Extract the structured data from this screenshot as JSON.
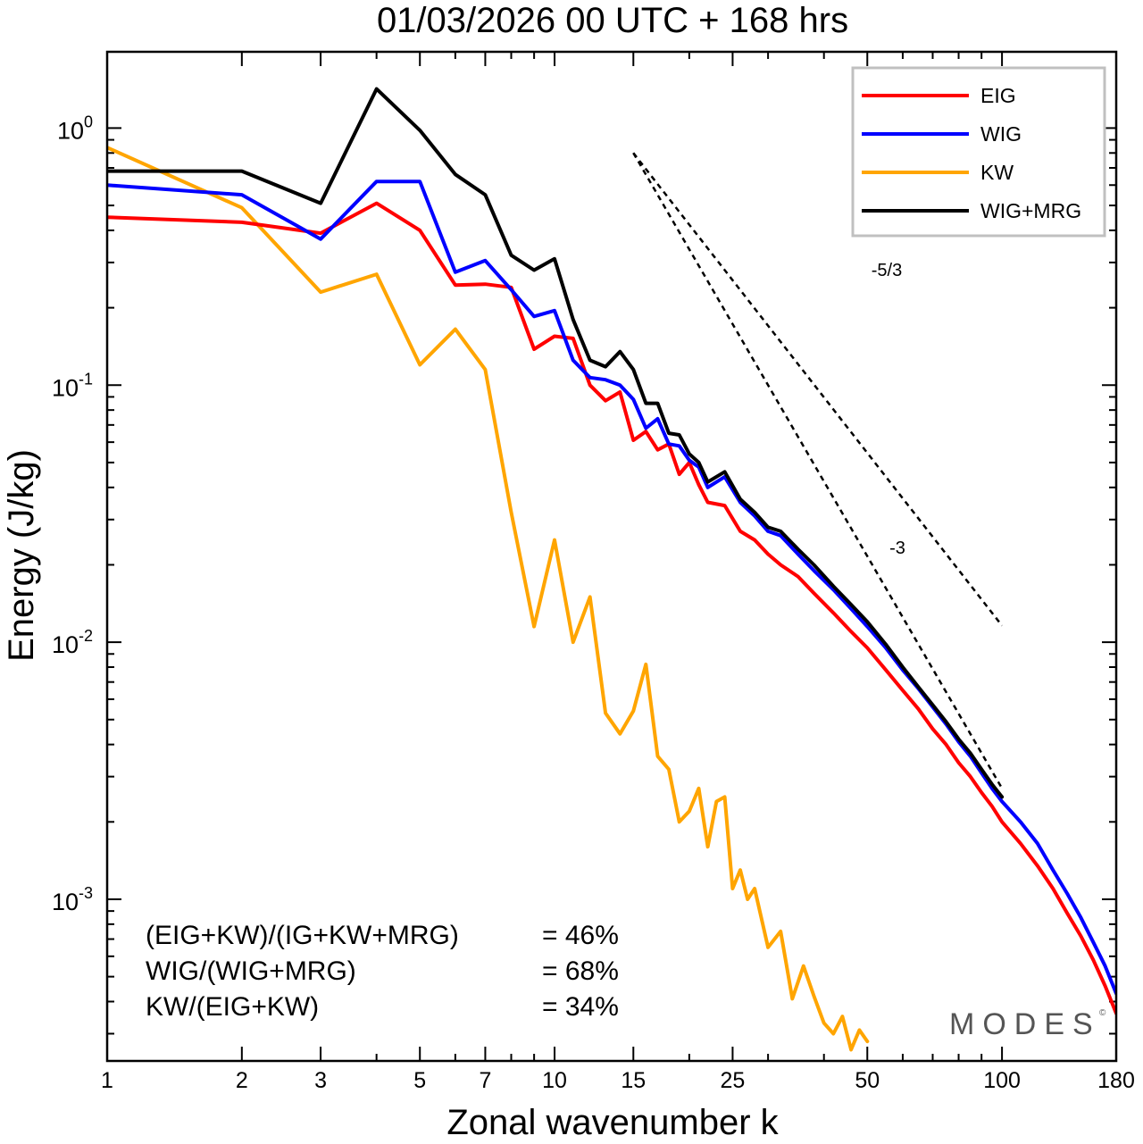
{
  "chart_data": {
    "type": "line",
    "title": "01/03/2026  00 UTC  + 168 hrs",
    "xlabel": "Zonal wavenumber k",
    "ylabel": "Energy (J/kg)",
    "xscale": "log",
    "yscale": "log",
    "xlim": [
      1,
      180
    ],
    "ylim": [
      0.000235,
      1.98
    ],
    "x_ticks": [
      1,
      2,
      3,
      5,
      7,
      10,
      15,
      25,
      50,
      100,
      180
    ],
    "x_tick_labels": [
      "1",
      "2",
      "3",
      "5",
      "7",
      "10",
      "15",
      "25",
      "50",
      "100",
      "180"
    ],
    "y_major_ticks": [
      {
        "value": 1,
        "base": "10",
        "exp": "0"
      },
      {
        "value": 0.1,
        "base": "10",
        "exp": "-1"
      },
      {
        "value": 0.01,
        "base": "10",
        "exp": "-2"
      },
      {
        "value": 0.001,
        "base": "10",
        "exp": "-3"
      }
    ],
    "legend_position": "top-right",
    "series": [
      {
        "name": "EIG",
        "color": "#ff0000",
        "points": [
          [
            1,
            0.45
          ],
          [
            2,
            0.43
          ],
          [
            3,
            0.39
          ],
          [
            4,
            0.51
          ],
          [
            5,
            0.4
          ],
          [
            6,
            0.245
          ],
          [
            7,
            0.247
          ],
          [
            8,
            0.24
          ],
          [
            9,
            0.138
          ],
          [
            10,
            0.155
          ],
          [
            11,
            0.152
          ],
          [
            12,
            0.1
          ],
          [
            13,
            0.087
          ],
          [
            14,
            0.094
          ],
          [
            15,
            0.061
          ],
          [
            16,
            0.066
          ],
          [
            17,
            0.056
          ],
          [
            18,
            0.059
          ],
          [
            19,
            0.045
          ],
          [
            20,
            0.05
          ],
          [
            21,
            0.041
          ],
          [
            22,
            0.035
          ],
          [
            24,
            0.034
          ],
          [
            26,
            0.027
          ],
          [
            28,
            0.025
          ],
          [
            30,
            0.022
          ],
          [
            32,
            0.02
          ],
          [
            35,
            0.018
          ],
          [
            38,
            0.0155
          ],
          [
            42,
            0.013
          ],
          [
            46,
            0.011
          ],
          [
            50,
            0.0095
          ],
          [
            55,
            0.0078
          ],
          [
            60,
            0.0065
          ],
          [
            65,
            0.0055
          ],
          [
            70,
            0.0046
          ],
          [
            75,
            0.004
          ],
          [
            80,
            0.0034
          ],
          [
            85,
            0.003
          ],
          [
            90,
            0.0026
          ],
          [
            95,
            0.0023
          ],
          [
            100,
            0.002
          ],
          [
            110,
            0.00165
          ],
          [
            120,
            0.00135
          ],
          [
            130,
            0.0011
          ],
          [
            140,
            0.00088
          ],
          [
            150,
            0.00072
          ],
          [
            160,
            0.00058
          ],
          [
            170,
            0.00046
          ],
          [
            180,
            0.00036
          ]
        ]
      },
      {
        "name": "WIG",
        "color": "#0000ff",
        "points": [
          [
            1,
            0.6
          ],
          [
            2,
            0.55
          ],
          [
            3,
            0.37
          ],
          [
            4,
            0.62
          ],
          [
            5,
            0.62
          ],
          [
            6,
            0.275
          ],
          [
            7,
            0.305
          ],
          [
            8,
            0.235
          ],
          [
            9,
            0.185
          ],
          [
            10,
            0.195
          ],
          [
            11,
            0.125
          ],
          [
            12,
            0.107
          ],
          [
            13,
            0.105
          ],
          [
            14,
            0.1
          ],
          [
            15,
            0.088
          ],
          [
            16,
            0.068
          ],
          [
            17,
            0.074
          ],
          [
            18,
            0.059
          ],
          [
            19,
            0.058
          ],
          [
            20,
            0.051
          ],
          [
            21,
            0.048
          ],
          [
            22,
            0.04
          ],
          [
            24,
            0.044
          ],
          [
            26,
            0.035
          ],
          [
            28,
            0.031
          ],
          [
            30,
            0.027
          ],
          [
            32,
            0.026
          ],
          [
            35,
            0.022
          ],
          [
            38,
            0.019
          ],
          [
            42,
            0.016
          ],
          [
            46,
            0.0135
          ],
          [
            50,
            0.0115
          ],
          [
            55,
            0.0095
          ],
          [
            60,
            0.0078
          ],
          [
            65,
            0.0066
          ],
          [
            70,
            0.0056
          ],
          [
            75,
            0.0048
          ],
          [
            80,
            0.0041
          ],
          [
            85,
            0.0036
          ],
          [
            90,
            0.0031
          ],
          [
            95,
            0.0027
          ],
          [
            100,
            0.0024
          ],
          [
            110,
            0.002
          ],
          [
            120,
            0.00165
          ],
          [
            130,
            0.0013
          ],
          [
            140,
            0.00105
          ],
          [
            150,
            0.00085
          ],
          [
            160,
            0.00068
          ],
          [
            170,
            0.00055
          ],
          [
            180,
            0.00043
          ]
        ]
      },
      {
        "name": "KW",
        "color": "#ffa500",
        "points": [
          [
            1,
            0.84
          ],
          [
            2,
            0.49
          ],
          [
            3,
            0.23
          ],
          [
            4,
            0.27
          ],
          [
            5,
            0.12
          ],
          [
            6,
            0.165
          ],
          [
            7,
            0.115
          ],
          [
            8,
            0.032
          ],
          [
            9,
            0.0115
          ],
          [
            10,
            0.025
          ],
          [
            11,
            0.01
          ],
          [
            12,
            0.015
          ],
          [
            13,
            0.0053
          ],
          [
            14,
            0.0044
          ],
          [
            15,
            0.0054
          ],
          [
            16,
            0.0082
          ],
          [
            17,
            0.0036
          ],
          [
            18,
            0.0032
          ],
          [
            19,
            0.002
          ],
          [
            20,
            0.0022
          ],
          [
            21,
            0.0027
          ],
          [
            22,
            0.0016
          ],
          [
            23,
            0.0024
          ],
          [
            24,
            0.0025
          ],
          [
            25,
            0.0011
          ],
          [
            26,
            0.0013
          ],
          [
            27,
            0.001
          ],
          [
            28,
            0.0011
          ],
          [
            30,
            0.00065
          ],
          [
            32,
            0.00075
          ],
          [
            34,
            0.00041
          ],
          [
            36,
            0.00055
          ],
          [
            38,
            0.00042
          ],
          [
            40,
            0.00033
          ],
          [
            42,
            0.0003
          ],
          [
            44,
            0.00035
          ],
          [
            46,
            0.00026
          ],
          [
            48,
            0.00031
          ],
          [
            50,
            0.00028
          ]
        ]
      },
      {
        "name": "WIG+MRG",
        "color": "#000000",
        "points": [
          [
            1,
            0.68
          ],
          [
            2,
            0.68
          ],
          [
            3,
            0.51
          ],
          [
            4,
            1.42
          ],
          [
            5,
            0.98
          ],
          [
            6,
            0.66
          ],
          [
            7,
            0.55
          ],
          [
            8,
            0.32
          ],
          [
            9,
            0.28
          ],
          [
            10,
            0.31
          ],
          [
            11,
            0.18
          ],
          [
            12,
            0.125
          ],
          [
            13,
            0.118
          ],
          [
            14,
            0.135
          ],
          [
            15,
            0.115
          ],
          [
            16,
            0.085
          ],
          [
            17,
            0.085
          ],
          [
            18,
            0.065
          ],
          [
            19,
            0.064
          ],
          [
            20,
            0.054
          ],
          [
            21,
            0.05
          ],
          [
            22,
            0.042
          ],
          [
            24,
            0.046
          ],
          [
            26,
            0.036
          ],
          [
            28,
            0.032
          ],
          [
            30,
            0.028
          ],
          [
            32,
            0.027
          ],
          [
            35,
            0.023
          ],
          [
            38,
            0.02
          ],
          [
            42,
            0.0165
          ],
          [
            46,
            0.014
          ],
          [
            50,
            0.012
          ],
          [
            55,
            0.0098
          ],
          [
            60,
            0.008
          ],
          [
            65,
            0.0067
          ],
          [
            70,
            0.0057
          ],
          [
            75,
            0.0049
          ],
          [
            80,
            0.0042
          ],
          [
            85,
            0.0037
          ],
          [
            90,
            0.0032
          ],
          [
            95,
            0.0028
          ],
          [
            100,
            0.0025
          ]
        ]
      }
    ],
    "reference_lines": [
      {
        "label": "-5/3",
        "slope": -1.6667,
        "start": [
          15,
          0.8
        ],
        "end": [
          100,
          0.0116
        ]
      },
      {
        "label": "-3",
        "slope": -3,
        "start": [
          15,
          0.8
        ],
        "end": [
          100,
          0.0027
        ]
      }
    ],
    "annotations": [
      {
        "label": "(EIG+KW)/(IG+KW+MRG)",
        "value": "= 46%"
      },
      {
        "label": "WIG/(WIG+MRG)",
        "value": "= 68%"
      },
      {
        "label": "KW/(EIG+KW)",
        "value": "= 34%"
      }
    ],
    "watermark": "MODES",
    "watermark_mark": "©"
  }
}
